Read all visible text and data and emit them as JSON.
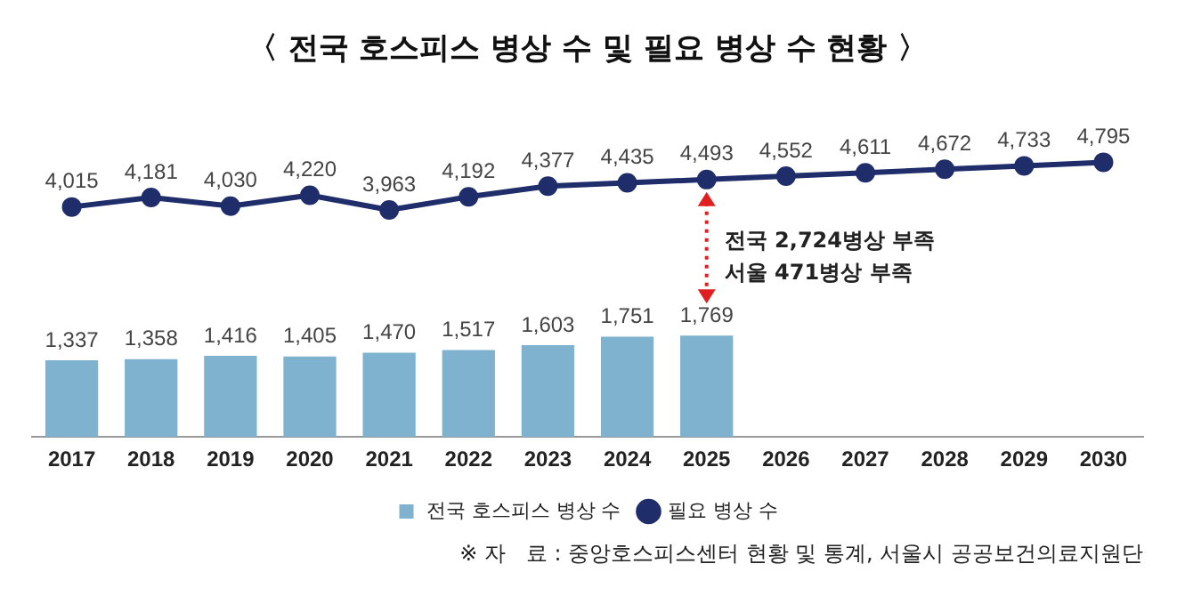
{
  "chart_data": {
    "type": "bar",
    "title": "〈 전국 호스피스 병상 수 및 필요 병상 수 현황 〉",
    "categories": [
      "2017",
      "2018",
      "2019",
      "2020",
      "2021",
      "2022",
      "2023",
      "2024",
      "2025",
      "2026",
      "2027",
      "2028",
      "2029",
      "2030"
    ],
    "series": [
      {
        "name": "전국 호스피스 병상 수",
        "color": "#7fb2cf",
        "values": [
          1337,
          1358,
          1416,
          1405,
          1470,
          1517,
          1603,
          1751,
          1769,
          null,
          null,
          null,
          null,
          null
        ],
        "value_labels": [
          "1,337",
          "1,358",
          "1,416",
          "1,405",
          "1,470",
          "1,517",
          "1,603",
          "1,751",
          "1,769",
          null,
          null,
          null,
          null,
          null
        ]
      },
      {
        "name": "필요 병상 수",
        "type": "line",
        "color": "#1f2d6b",
        "values": [
          4015,
          4181,
          4030,
          4220,
          3963,
          4192,
          4377,
          4435,
          4493,
          4552,
          4611,
          4672,
          4733,
          4795
        ],
        "value_labels": [
          "4,015",
          "4,181",
          "4,030",
          "4,220",
          "3,963",
          "4,192",
          "4,377",
          "4,435",
          "4,493",
          "4,552",
          "4,611",
          "4,672",
          "4,733",
          "4,795"
        ]
      }
    ],
    "marker": "circle",
    "legend": "bottom",
    "tick_labels": "x",
    "grid": false,
    "annotations": [
      "전국 2,724병상 부족",
      "서울 471병상 부족",
      "※ 자   료 : 중앙호스피스센터 현황 및 통계, 서울시 공공보건의료지원단"
    ]
  }
}
